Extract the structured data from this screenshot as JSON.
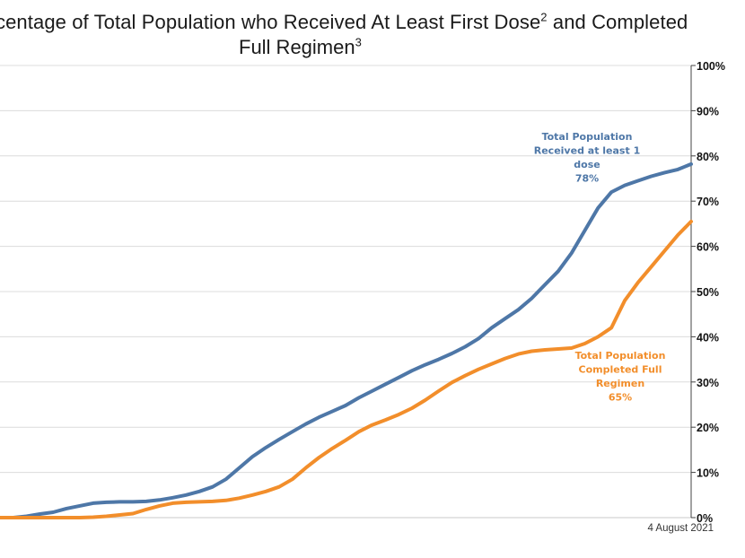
{
  "title": {
    "line1_text": "centage of Total Population who Received At Least First Dose",
    "line1_sup": "2",
    "line1_end": " and Completed",
    "line2_text": "Full Regimen",
    "line2_sup": "3"
  },
  "date_label": "4 August 2021",
  "colors": {
    "first_dose": "#4e77a7",
    "full_regimen": "#f28e2b",
    "grid": "#dcdcdc",
    "axis": "#444444"
  },
  "chart_data": {
    "type": "line",
    "y_axis": {
      "position": "right",
      "ticks": [
        "0%",
        "10%",
        "20%",
        "30%",
        "40%",
        "50%",
        "60%",
        "70%",
        "80%",
        "90%",
        "100%"
      ],
      "ylim": [
        0,
        100
      ]
    },
    "x": {
      "start_label": "",
      "end_label": "4 August 2021"
    },
    "grid": true,
    "series": [
      {
        "key": "first_dose",
        "annotation": [
          "Total Population",
          "Received at least 1",
          "dose",
          "78%"
        ],
        "values": [
          0,
          0,
          0.3,
          0.8,
          1.2,
          2,
          2.6,
          3.2,
          3.4,
          3.5,
          3.5,
          3.6,
          3.9,
          4.4,
          5,
          5.8,
          6.8,
          8.5,
          11,
          13.5,
          15.5,
          17.3,
          19,
          20.7,
          22.2,
          23.5,
          24.8,
          26.5,
          28,
          29.5,
          31,
          32.5,
          33.8,
          35,
          36.3,
          37.8,
          39.6,
          42,
          44,
          46,
          48.5,
          51.5,
          54.5,
          58.5,
          63.5,
          68.5,
          72,
          73.5,
          74.5,
          75.5,
          76.3,
          77,
          78.2
        ]
      },
      {
        "key": "full_regimen",
        "annotation": [
          "Total Population",
          "Completed Full",
          "Regimen",
          "65%"
        ],
        "values": [
          0,
          0,
          0,
          0,
          0,
          0,
          0,
          0.1,
          0.3,
          0.6,
          0.9,
          1.8,
          2.6,
          3.2,
          3.4,
          3.5,
          3.6,
          3.8,
          4.3,
          5,
          5.8,
          6.8,
          8.5,
          11,
          13.3,
          15.3,
          17.1,
          19,
          20.5,
          21.6,
          22.8,
          24.2,
          26,
          28,
          29.9,
          31.4,
          32.8,
          34,
          35.2,
          36.2,
          36.8,
          37.1,
          37.3,
          37.5,
          38.5,
          40,
          42,
          48,
          52,
          55.5,
          59,
          62.5,
          65.5
        ]
      }
    ]
  }
}
